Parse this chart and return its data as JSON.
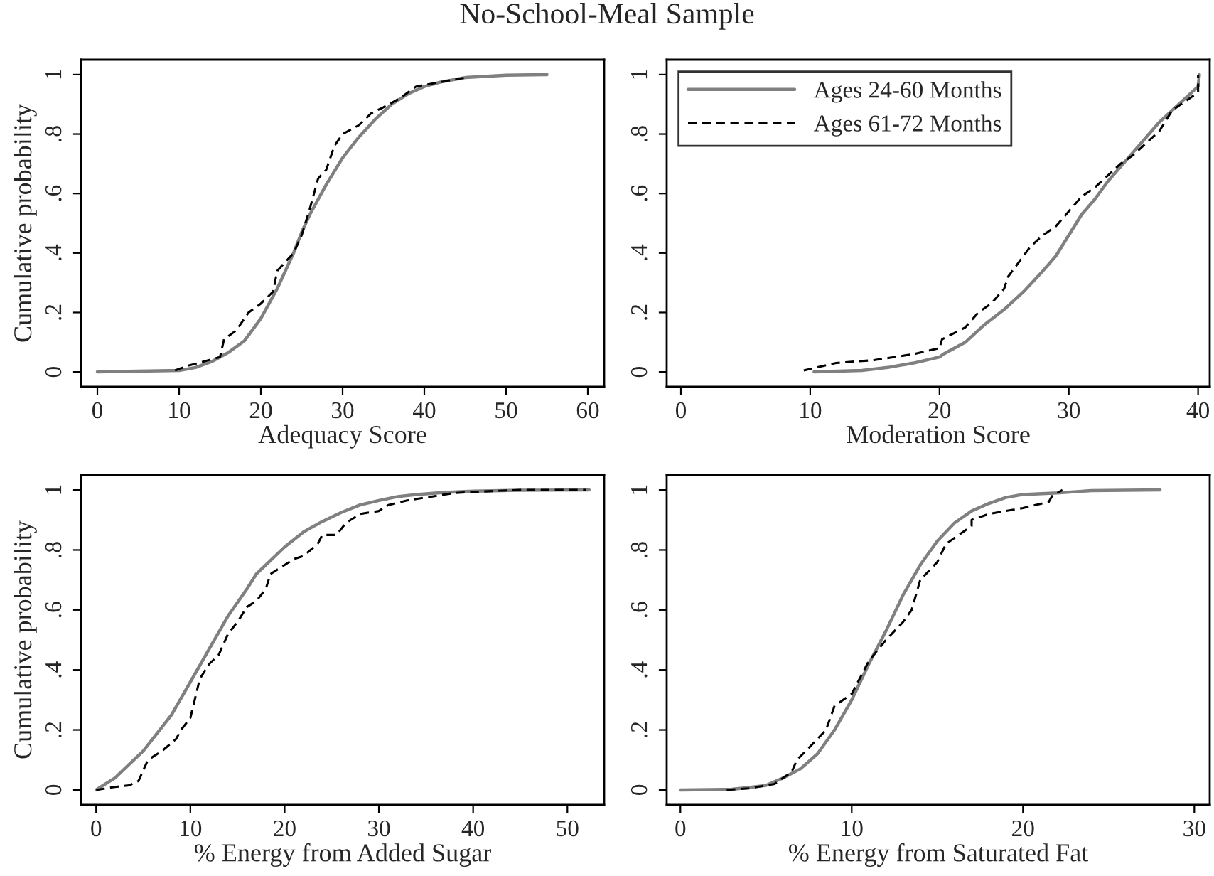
{
  "chart_data": [
    {
      "type": "line",
      "title": "No-School-Meal Sample",
      "xlabel": "Adequacy Score",
      "ylabel": "Cumulative probability",
      "xlim": [
        -2,
        62
      ],
      "xticks": [
        0,
        10,
        20,
        30,
        40,
        50,
        60
      ],
      "ylim": [
        -0.05,
        1.05
      ],
      "yticks": [
        {
          "value": 0,
          "label": "0"
        },
        {
          "value": 0.2,
          "label": ".2"
        },
        {
          "value": 0.4,
          "label": ".4"
        },
        {
          "value": 0.6,
          "label": ".6"
        },
        {
          "value": 0.8,
          "label": ".8"
        },
        {
          "value": 1,
          "label": "1"
        }
      ],
      "grid": false,
      "legend": false,
      "series": [
        {
          "color": "#808080",
          "line_style": "solid",
          "x": [
            0,
            10,
            12,
            14,
            15,
            16,
            18,
            20,
            22,
            24,
            25,
            26,
            28,
            30,
            32,
            34,
            36,
            38,
            40,
            42,
            45,
            50,
            55
          ],
          "values": [
            0,
            0.005,
            0.015,
            0.035,
            0.05,
            0.065,
            0.105,
            0.18,
            0.28,
            0.4,
            0.47,
            0.53,
            0.63,
            0.72,
            0.79,
            0.85,
            0.9,
            0.935,
            0.96,
            0.975,
            0.99,
            0.998,
            1.0
          ]
        },
        {
          "color": "#000000",
          "line_style": "dashed",
          "x": [
            9.5,
            11,
            13,
            15,
            15.5,
            17,
            18.5,
            20,
            21.5,
            22,
            24,
            25,
            26,
            27,
            28,
            29,
            30,
            32,
            33.5,
            35,
            37,
            39,
            41,
            43,
            45,
            45.3
          ],
          "values": [
            0.005,
            0.02,
            0.035,
            0.05,
            0.11,
            0.14,
            0.2,
            0.23,
            0.27,
            0.34,
            0.4,
            0.46,
            0.55,
            0.65,
            0.68,
            0.76,
            0.8,
            0.83,
            0.87,
            0.89,
            0.92,
            0.96,
            0.97,
            0.98,
            0.99,
            1.0
          ]
        }
      ]
    },
    {
      "type": "line",
      "xlabel": "Moderation Score",
      "xlim": [
        -1.1,
        40.9
      ],
      "xticks": [
        0,
        10,
        20,
        30,
        40
      ],
      "ylim": [
        -0.05,
        1.05
      ],
      "yticks": [
        {
          "value": 0,
          "label": "0"
        },
        {
          "value": 0.2,
          "label": ".2"
        },
        {
          "value": 0.4,
          "label": ".4"
        },
        {
          "value": 0.6,
          "label": ".6"
        },
        {
          "value": 0.8,
          "label": ".8"
        },
        {
          "value": 1,
          "label": "1"
        }
      ],
      "grid": false,
      "legend": "top left",
      "series": [
        {
          "name": "Ages 24-60 Months",
          "color": "#808080",
          "line_style": "solid",
          "x": [
            10.3,
            14,
            16,
            18,
            20,
            20.3,
            22,
            23.5,
            25,
            26.5,
            28,
            29,
            30,
            31,
            32,
            33,
            34,
            35,
            36,
            37,
            38,
            39,
            40,
            40.1
          ],
          "values": [
            0,
            0.005,
            0.015,
            0.03,
            0.05,
            0.06,
            0.1,
            0.16,
            0.21,
            0.27,
            0.34,
            0.39,
            0.46,
            0.53,
            0.58,
            0.64,
            0.69,
            0.74,
            0.79,
            0.84,
            0.88,
            0.92,
            0.96,
            1.0
          ]
        },
        {
          "name": "Ages 61-72 Months",
          "color": "#000000",
          "line_style": "dashed",
          "x": [
            9.5,
            12,
            15,
            18,
            20,
            20.2,
            22,
            23,
            24,
            25,
            25.3,
            27,
            28,
            29,
            30,
            31,
            32,
            33,
            34,
            35,
            36,
            37,
            38,
            39,
            40,
            40
          ],
          "values": [
            0.005,
            0.03,
            0.04,
            0.06,
            0.08,
            0.11,
            0.15,
            0.2,
            0.23,
            0.28,
            0.32,
            0.42,
            0.46,
            0.49,
            0.54,
            0.59,
            0.62,
            0.66,
            0.7,
            0.73,
            0.77,
            0.81,
            0.88,
            0.91,
            0.94,
            1.0
          ]
        }
      ]
    },
    {
      "type": "line",
      "xlabel": "% Energy from Added Sugar",
      "ylabel": "Cumulative probability",
      "xlim": [
        -1.6,
        53.9
      ],
      "xticks": [
        0,
        10,
        20,
        30,
        40,
        50
      ],
      "ylim": [
        -0.05,
        1.05
      ],
      "yticks": [
        {
          "value": 0,
          "label": "0"
        },
        {
          "value": 0.2,
          "label": ".2"
        },
        {
          "value": 0.4,
          "label": ".4"
        },
        {
          "value": 0.6,
          "label": ".6"
        },
        {
          "value": 0.8,
          "label": ".8"
        },
        {
          "value": 1,
          "label": "1"
        }
      ],
      "grid": false,
      "legend": false,
      "series": [
        {
          "color": "#808080",
          "line_style": "solid",
          "x": [
            0,
            1,
            2,
            3,
            5,
            7,
            8,
            10,
            12,
            14,
            16,
            17,
            18,
            20,
            22,
            24,
            26,
            28,
            30,
            32,
            34,
            37,
            40,
            45,
            52.3
          ],
          "values": [
            0,
            0.02,
            0.04,
            0.07,
            0.13,
            0.21,
            0.25,
            0.36,
            0.47,
            0.58,
            0.67,
            0.72,
            0.75,
            0.81,
            0.86,
            0.895,
            0.925,
            0.95,
            0.965,
            0.978,
            0.985,
            0.992,
            0.996,
            0.999,
            1.0
          ]
        },
        {
          "color": "#000000",
          "line_style": "dashed",
          "x": [
            0,
            1,
            2,
            3.5,
            4.5,
            5.5,
            7,
            8.5,
            9,
            10,
            11,
            12,
            13,
            14,
            15,
            16,
            17,
            18,
            18.5,
            20,
            21,
            22,
            23.5,
            24,
            25.5,
            26.5,
            28,
            30,
            31,
            33,
            35,
            38,
            41,
            45,
            52
          ],
          "values": [
            0,
            0.005,
            0.01,
            0.015,
            0.03,
            0.1,
            0.13,
            0.17,
            0.2,
            0.24,
            0.37,
            0.42,
            0.45,
            0.52,
            0.56,
            0.61,
            0.63,
            0.67,
            0.72,
            0.75,
            0.77,
            0.78,
            0.82,
            0.85,
            0.85,
            0.89,
            0.92,
            0.93,
            0.95,
            0.965,
            0.975,
            0.99,
            0.995,
            1.0,
            1.0
          ]
        }
      ]
    },
    {
      "type": "line",
      "xlabel": "% Energy from Saturated Fat",
      "xlim": [
        -0.8,
        30.9
      ],
      "xticks": [
        0,
        10,
        20,
        30
      ],
      "ylim": [
        -0.05,
        1.05
      ],
      "yticks": [
        {
          "value": 0,
          "label": "0"
        },
        {
          "value": 0.2,
          "label": ".2"
        },
        {
          "value": 0.4,
          "label": ".4"
        },
        {
          "value": 0.6,
          "label": ".6"
        },
        {
          "value": 0.8,
          "label": ".8"
        },
        {
          "value": 1,
          "label": "1"
        }
      ],
      "grid": false,
      "legend": false,
      "series": [
        {
          "color": "#808080",
          "line_style": "solid",
          "x": [
            0,
            3,
            4,
            5,
            6,
            7,
            8,
            9,
            10,
            11,
            12,
            13,
            14,
            15,
            16,
            17,
            18,
            19,
            20,
            22,
            24,
            28
          ],
          "values": [
            0,
            0.002,
            0.008,
            0.015,
            0.04,
            0.07,
            0.12,
            0.2,
            0.3,
            0.42,
            0.53,
            0.65,
            0.75,
            0.83,
            0.89,
            0.93,
            0.955,
            0.975,
            0.985,
            0.99,
            0.998,
            1.0
          ]
        },
        {
          "color": "#000000",
          "line_style": "dashed",
          "x": [
            2.7,
            4,
            5.5,
            6.5,
            6.8,
            7.5,
            8.5,
            9,
            9.5,
            10,
            11,
            12,
            13,
            13.5,
            14,
            15,
            15.5,
            16,
            17,
            17,
            18,
            20,
            21.5,
            21.7,
            22.3
          ],
          "values": [
            0,
            0.005,
            0.02,
            0.06,
            0.1,
            0.14,
            0.2,
            0.28,
            0.3,
            0.32,
            0.43,
            0.5,
            0.56,
            0.6,
            0.7,
            0.76,
            0.82,
            0.84,
            0.88,
            0.9,
            0.92,
            0.94,
            0.96,
            0.98,
            1.0
          ]
        }
      ]
    }
  ]
}
